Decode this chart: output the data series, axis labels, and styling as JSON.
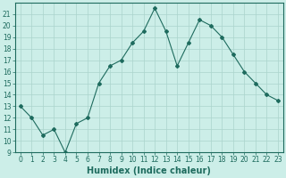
{
  "x": [
    0,
    1,
    2,
    3,
    4,
    5,
    6,
    7,
    8,
    9,
    10,
    11,
    12,
    13,
    14,
    15,
    16,
    17,
    18,
    19,
    20,
    21,
    22,
    23
  ],
  "y": [
    13,
    12,
    10.5,
    11,
    9,
    11.5,
    12,
    15,
    16.5,
    17,
    18.5,
    19.5,
    21.5,
    19.5,
    16.5,
    18.5,
    20.5,
    20,
    19,
    17.5,
    16,
    15,
    14,
    13.5
  ],
  "line_color": "#1e6b5e",
  "marker": "D",
  "marker_size": 2.0,
  "bg_color": "#cceee8",
  "grid_color": "#aad4cc",
  "xlabel": "Humidex (Indice chaleur)",
  "xlim": [
    -0.5,
    23.5
  ],
  "ylim": [
    9,
    22
  ],
  "yticks": [
    9,
    10,
    11,
    12,
    13,
    14,
    15,
    16,
    17,
    18,
    19,
    20,
    21
  ],
  "xticks": [
    0,
    1,
    2,
    3,
    4,
    5,
    6,
    7,
    8,
    9,
    10,
    11,
    12,
    13,
    14,
    15,
    16,
    17,
    18,
    19,
    20,
    21,
    22,
    23
  ],
  "tick_fontsize": 5.5,
  "xlabel_fontsize": 7.0,
  "tick_color": "#1e6b5e",
  "axis_color": "#1e6b5e",
  "linewidth": 0.8
}
